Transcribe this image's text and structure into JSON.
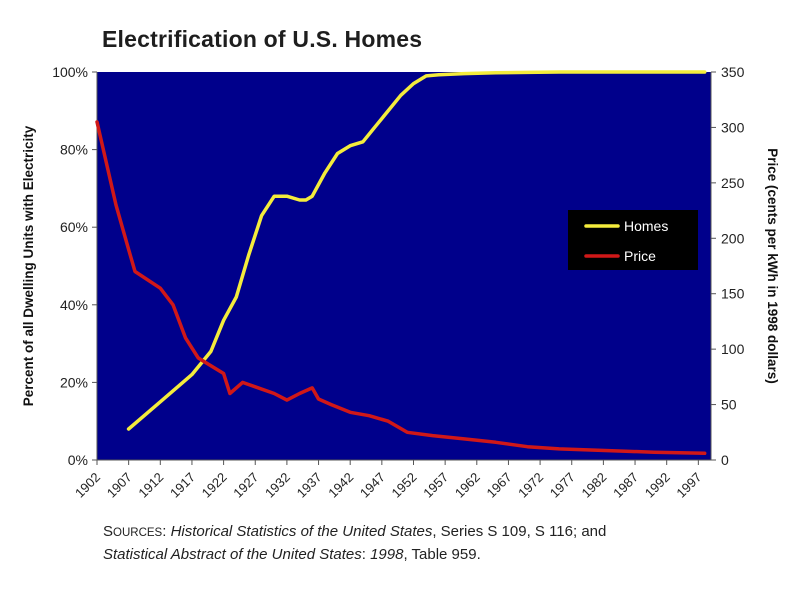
{
  "chart_data": {
    "type": "line",
    "title": "Electrification of U.S. Homes",
    "xlabel": "",
    "ylabel_left": "Percent of all Dwelling Units with Electricity",
    "ylabel_right": "Price (cents per kWh  in 1998 dollars)",
    "x_ticks": [
      "1902",
      "1907",
      "1912",
      "1917",
      "1922",
      "1927",
      "1932",
      "1937",
      "1942",
      "1947",
      "1952",
      "1957",
      "1962",
      "1967",
      "1972",
      "1977",
      "1982",
      "1987",
      "1992",
      "1997"
    ],
    "xlim": [
      1902,
      1999
    ],
    "y_left_ticks": [
      "0%",
      "20%",
      "40%",
      "60%",
      "80%",
      "100%"
    ],
    "y_left_lim": [
      0,
      100
    ],
    "y_right_ticks": [
      "0",
      "50",
      "100",
      "150",
      "200",
      "250",
      "300",
      "350"
    ],
    "y_right_lim": [
      0,
      350
    ],
    "grid": false,
    "legend_position": "right",
    "plot_background": "#00008b",
    "series": [
      {
        "name": "Homes",
        "axis": "left",
        "color": "#f4ec3c",
        "x": [
          1907,
          1912,
          1917,
          1920,
          1922,
          1924,
          1926,
          1928,
          1930,
          1932,
          1934,
          1935,
          1936,
          1938,
          1940,
          1942,
          1944,
          1946,
          1947,
          1950,
          1952,
          1954,
          1956,
          1960,
          1965,
          1970,
          1975,
          1980,
          1985,
          1990,
          1995,
          1998
        ],
        "y": [
          8,
          15,
          22,
          28,
          36,
          42,
          53,
          63,
          68,
          68,
          67,
          67,
          68,
          74,
          79,
          81,
          82,
          86,
          88,
          94,
          97,
          99,
          99.3,
          99.6,
          99.8,
          99.9,
          100,
          100,
          100,
          100,
          100,
          100
        ]
      },
      {
        "name": "Price",
        "axis": "right",
        "color": "#d01818",
        "x": [
          1902,
          1905,
          1907,
          1908,
          1912,
          1914,
          1916,
          1918,
          1920,
          1922,
          1923,
          1925,
          1927,
          1930,
          1932,
          1934,
          1936,
          1937,
          1939,
          1942,
          1945,
          1948,
          1951,
          1955,
          1960,
          1965,
          1970,
          1975,
          1980,
          1985,
          1990,
          1998
        ],
        "y": [
          305,
          230,
          190,
          170,
          155,
          140,
          110,
          92,
          85,
          78,
          60,
          70,
          66,
          60,
          54,
          60,
          65,
          55,
          50,
          43,
          40,
          35,
          25,
          22,
          19,
          16,
          12,
          10,
          9,
          8,
          7,
          6
        ]
      }
    ]
  },
  "source": {
    "prefix_initial": "S",
    "prefix_rest": "OURCES",
    "text_1": ": ",
    "title_1": "Historical Statistics of the United States",
    "text_2": ", Series S 109, S 116; and",
    "title_2": "Statistical Abstract of the United States",
    "text_3": ": ",
    "year": "1998",
    "text_4": ", Table 959."
  }
}
